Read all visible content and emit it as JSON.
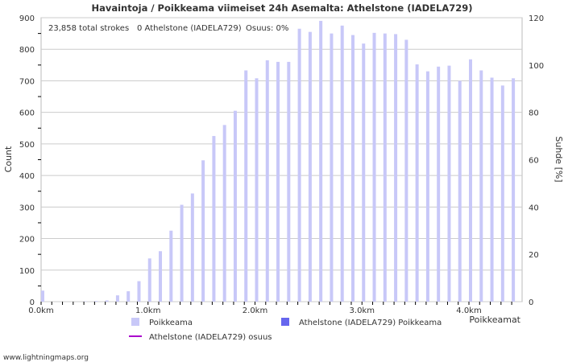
{
  "chart_data": {
    "type": "bar",
    "title": "Havaintoja / Poikkeama viimeiset 24h Asemalta: Athelstone (IADELA729)",
    "stats": {
      "total": "23,858 total strokes",
      "station": "0 Athelstone (IADELA729)",
      "ratio": "Osuus:  0%"
    },
    "xlabel": "Poikkeamat",
    "ylabel": "Count",
    "y2label": "Suhde [%]",
    "ylim": [
      0,
      900
    ],
    "y2lim": [
      0,
      120
    ],
    "yticks": [
      "0",
      "100",
      "200",
      "300",
      "400",
      "500",
      "600",
      "700",
      "800",
      "900"
    ],
    "y2ticks": [
      "0",
      "20",
      "40",
      "60",
      "80",
      "100",
      "120"
    ],
    "xticks": [
      "0.0km",
      "1.0km",
      "2.0km",
      "3.0km",
      "4.0km"
    ],
    "x_step_km": 0.1,
    "series": [
      {
        "name": "Poikkeama",
        "color": "#c8c8f8",
        "values": [
          35,
          0,
          0,
          0,
          1,
          2,
          4,
          20,
          33,
          65,
          137,
          160,
          225,
          307,
          343,
          448,
          525,
          560,
          605,
          733,
          708,
          765,
          760,
          760,
          865,
          855,
          890,
          850,
          875,
          845,
          818,
          852,
          850,
          848,
          830,
          752,
          730,
          745,
          748,
          700,
          768,
          733,
          710,
          685,
          708
        ]
      },
      {
        "name": "Athelstone (IADELA729) Poikkeama",
        "color": "#6666ee",
        "values": []
      },
      {
        "name": "Athelstone (IADELA729) osuus",
        "color": "#aa00cc",
        "values": []
      }
    ],
    "footer": "www.lightningmaps.org"
  }
}
